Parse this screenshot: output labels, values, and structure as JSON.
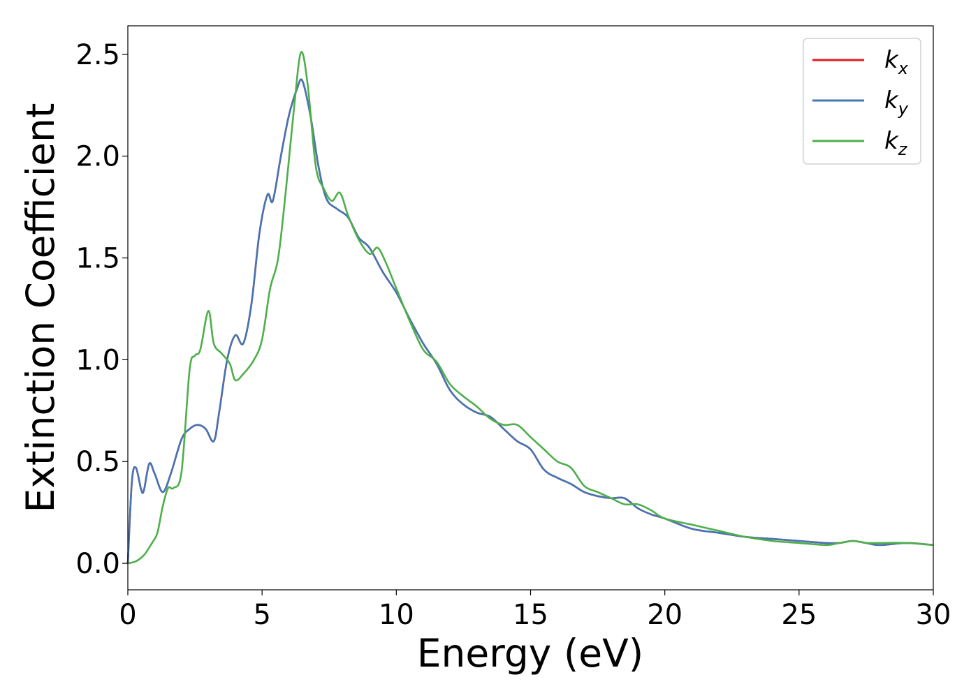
{
  "chart_data": {
    "type": "line",
    "title": "",
    "xlabel": "Energy (eV)",
    "ylabel": "Extinction Coefficient",
    "xlim": [
      0,
      30
    ],
    "ylim": [
      -0.13,
      2.64
    ],
    "xticks": [
      0,
      5,
      10,
      15,
      20,
      25,
      30
    ],
    "xtick_labels": [
      "0",
      "5",
      "10",
      "15",
      "20",
      "25",
      "30"
    ],
    "yticks": [
      0.0,
      0.5,
      1.0,
      1.5,
      2.0,
      2.5
    ],
    "ytick_labels": [
      "0.0",
      "0.5",
      "1.0",
      "1.5",
      "2.0",
      "2.5"
    ],
    "grid": false,
    "legend_position": "top-right",
    "series": [
      {
        "name": "kx",
        "label_base": "k",
        "label_sub": "x",
        "color": "#e41a1c",
        "x": [
          0,
          0.15,
          0.3,
          0.5,
          0.6,
          0.8,
          1.0,
          1.3,
          1.6,
          2.0,
          2.3,
          2.6,
          2.9,
          3.2,
          3.4,
          3.7,
          4.0,
          4.3,
          4.6,
          4.9,
          5.2,
          5.4,
          5.7,
          6.0,
          6.3,
          6.5,
          6.8,
          7.1,
          7.4,
          7.8,
          8.2,
          8.6,
          9.0,
          9.5,
          10.0,
          10.5,
          11.0,
          11.5,
          12.0,
          12.5,
          13.0,
          13.5,
          14.0,
          14.5,
          15.0,
          15.5,
          16.0,
          16.5,
          17.0,
          17.5,
          18.0,
          18.5,
          19.0,
          19.5,
          20.0,
          21.0,
          22.0,
          23.0,
          24.0,
          25.0,
          26.0,
          26.5,
          27.0,
          27.5,
          28.0,
          29.0,
          30.0
        ],
        "y": [
          0.0,
          0.4,
          0.47,
          0.36,
          0.36,
          0.49,
          0.44,
          0.35,
          0.44,
          0.61,
          0.66,
          0.68,
          0.66,
          0.6,
          0.74,
          1.0,
          1.12,
          1.08,
          1.27,
          1.62,
          1.81,
          1.78,
          2.0,
          2.2,
          2.33,
          2.37,
          2.2,
          1.95,
          1.79,
          1.74,
          1.7,
          1.6,
          1.55,
          1.43,
          1.33,
          1.2,
          1.08,
          0.98,
          0.85,
          0.78,
          0.74,
          0.72,
          0.66,
          0.6,
          0.56,
          0.46,
          0.42,
          0.39,
          0.35,
          0.33,
          0.32,
          0.32,
          0.27,
          0.24,
          0.22,
          0.17,
          0.15,
          0.13,
          0.12,
          0.11,
          0.1,
          0.1,
          0.11,
          0.1,
          0.09,
          0.1,
          0.09
        ]
      },
      {
        "name": "ky",
        "label_base": "k",
        "label_sub": "y",
        "color": "#4575b4",
        "x": [
          0,
          0.15,
          0.3,
          0.5,
          0.6,
          0.8,
          1.0,
          1.3,
          1.6,
          2.0,
          2.3,
          2.6,
          2.9,
          3.2,
          3.4,
          3.7,
          4.0,
          4.3,
          4.6,
          4.9,
          5.2,
          5.4,
          5.7,
          6.0,
          6.3,
          6.5,
          6.8,
          7.1,
          7.4,
          7.8,
          8.2,
          8.6,
          9.0,
          9.5,
          10.0,
          10.5,
          11.0,
          11.5,
          12.0,
          12.5,
          13.0,
          13.5,
          14.0,
          14.5,
          15.0,
          15.5,
          16.0,
          16.5,
          17.0,
          17.5,
          18.0,
          18.5,
          19.0,
          19.5,
          20.0,
          21.0,
          22.0,
          23.0,
          24.0,
          25.0,
          26.0,
          26.5,
          27.0,
          27.5,
          28.0,
          29.0,
          30.0
        ],
        "y": [
          0.0,
          0.4,
          0.47,
          0.36,
          0.36,
          0.49,
          0.44,
          0.35,
          0.44,
          0.61,
          0.66,
          0.68,
          0.66,
          0.6,
          0.74,
          1.0,
          1.12,
          1.08,
          1.27,
          1.62,
          1.81,
          1.78,
          2.0,
          2.2,
          2.33,
          2.37,
          2.2,
          1.95,
          1.79,
          1.74,
          1.7,
          1.6,
          1.55,
          1.43,
          1.33,
          1.2,
          1.08,
          0.98,
          0.85,
          0.78,
          0.74,
          0.72,
          0.66,
          0.6,
          0.56,
          0.46,
          0.42,
          0.39,
          0.35,
          0.33,
          0.32,
          0.32,
          0.27,
          0.24,
          0.22,
          0.17,
          0.15,
          0.13,
          0.12,
          0.11,
          0.1,
          0.1,
          0.11,
          0.1,
          0.09,
          0.1,
          0.09
        ]
      },
      {
        "name": "kz",
        "label_base": "k",
        "label_sub": "z",
        "color": "#4daf4a",
        "x": [
          0,
          0.3,
          0.6,
          0.9,
          1.1,
          1.3,
          1.5,
          1.7,
          2.0,
          2.3,
          2.5,
          2.7,
          3.0,
          3.2,
          3.5,
          3.8,
          4.0,
          4.3,
          4.7,
          5.0,
          5.3,
          5.6,
          5.9,
          6.2,
          6.45,
          6.7,
          7.0,
          7.3,
          7.6,
          7.9,
          8.2,
          8.6,
          9.0,
          9.3,
          9.6,
          10.0,
          10.5,
          11.0,
          11.5,
          12.0,
          12.5,
          13.0,
          13.5,
          14.0,
          14.5,
          15.0,
          15.5,
          16.0,
          16.5,
          17.0,
          17.5,
          18.0,
          18.5,
          19.0,
          19.5,
          20.0,
          21.0,
          22.0,
          23.0,
          24.0,
          25.0,
          26.0,
          26.5,
          27.0,
          27.5,
          28.0,
          29.0,
          30.0
        ],
        "y": [
          0.0,
          0.01,
          0.04,
          0.1,
          0.15,
          0.28,
          0.37,
          0.37,
          0.45,
          0.95,
          1.02,
          1.05,
          1.24,
          1.08,
          1.03,
          0.98,
          0.9,
          0.93,
          1.0,
          1.1,
          1.35,
          1.5,
          1.85,
          2.25,
          2.51,
          2.35,
          1.95,
          1.84,
          1.78,
          1.82,
          1.71,
          1.59,
          1.52,
          1.55,
          1.48,
          1.35,
          1.19,
          1.05,
          0.99,
          0.88,
          0.82,
          0.77,
          0.71,
          0.68,
          0.68,
          0.62,
          0.56,
          0.5,
          0.47,
          0.38,
          0.35,
          0.32,
          0.29,
          0.29,
          0.26,
          0.22,
          0.19,
          0.16,
          0.13,
          0.11,
          0.1,
          0.09,
          0.1,
          0.11,
          0.1,
          0.1,
          0.1,
          0.09
        ]
      }
    ]
  }
}
